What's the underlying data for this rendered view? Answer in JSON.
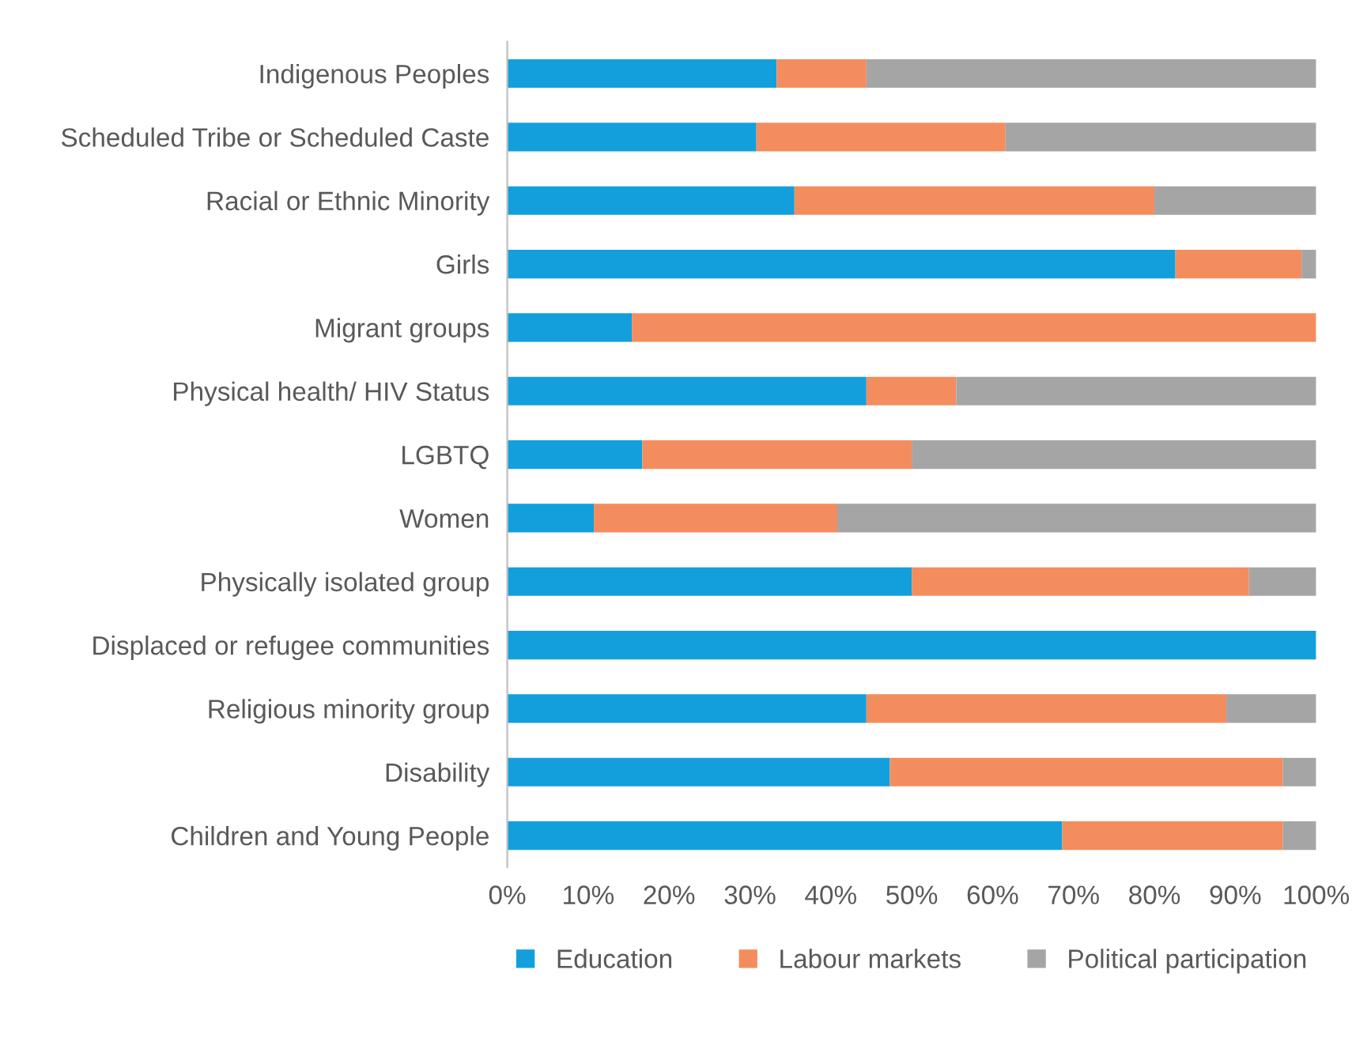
{
  "chart_data": {
    "type": "bar",
    "orientation": "horizontal",
    "stacked": true,
    "categories": [
      "Indigenous Peoples",
      "Scheduled Tribe or Scheduled Caste",
      "Racial or Ethnic Minority",
      "Girls",
      "Migrant groups",
      "Physical health/ HIV Status",
      "LGBTQ",
      "Women",
      "Physically isolated group",
      "Displaced or refugee communities",
      "Religious minority group",
      "Disability",
      "Children and Young People"
    ],
    "series": [
      {
        "name": "Education",
        "color": "#139fdc",
        "values": [
          33.3,
          30.8,
          35.5,
          82.6,
          15.4,
          44.4,
          16.7,
          10.7,
          50,
          100,
          44.4,
          47.3,
          68.6
        ]
      },
      {
        "name": "Labour markets",
        "color": "#f48d5e",
        "values": [
          11.1,
          30.8,
          44.5,
          15.6,
          84.6,
          11.1,
          33.3,
          30.1,
          41.7,
          0,
          44.5,
          48.6,
          27.3
        ]
      },
      {
        "name": "Political participation",
        "color": "#a5a5a5",
        "values": [
          55.6,
          38.4,
          20,
          1.8,
          0,
          44.5,
          50,
          59.2,
          8.3,
          0,
          11.1,
          4.1,
          4.1
        ]
      }
    ],
    "xlim": [
      0,
      100
    ],
    "xticks": [
      {
        "value": 0,
        "label": "0%"
      },
      {
        "value": 10,
        "label": "10%"
      },
      {
        "value": 20,
        "label": "20%"
      },
      {
        "value": 30,
        "label": "30%"
      },
      {
        "value": 40,
        "label": "40%"
      },
      {
        "value": 50,
        "label": "50%"
      },
      {
        "value": 60,
        "label": "60%"
      },
      {
        "value": 70,
        "label": "70%"
      },
      {
        "value": 80,
        "label": "80%"
      },
      {
        "value": 90,
        "label": "90%"
      },
      {
        "value": 100,
        "label": "100%"
      }
    ],
    "grid": false,
    "legend": "bottom"
  }
}
